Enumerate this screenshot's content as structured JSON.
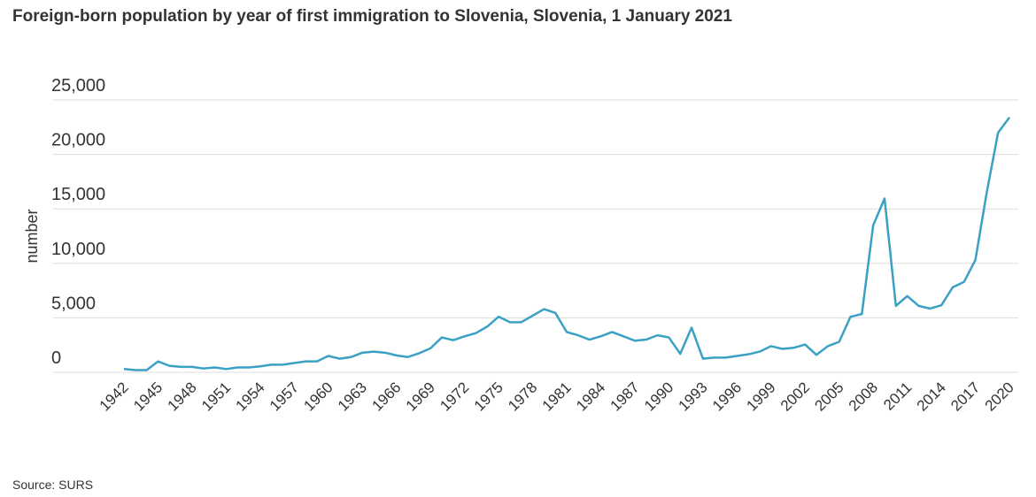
{
  "chart_data": {
    "type": "line",
    "title": "Foreign-born population by year of first immigration to Slovenia, Slovenia, 1 January 2021",
    "y_label": "number",
    "source": "Source: SURS",
    "x": [
      1942,
      1943,
      1944,
      1945,
      1946,
      1947,
      1948,
      1949,
      1950,
      1951,
      1952,
      1953,
      1954,
      1955,
      1956,
      1957,
      1958,
      1959,
      1960,
      1961,
      1962,
      1963,
      1964,
      1965,
      1966,
      1967,
      1968,
      1969,
      1970,
      1971,
      1972,
      1973,
      1974,
      1975,
      1976,
      1977,
      1978,
      1979,
      1980,
      1981,
      1982,
      1983,
      1984,
      1985,
      1986,
      1987,
      1988,
      1989,
      1990,
      1991,
      1992,
      1993,
      1994,
      1995,
      1996,
      1997,
      1998,
      1999,
      2000,
      2001,
      2002,
      2003,
      2004,
      2005,
      2006,
      2007,
      2008,
      2009,
      2010,
      2011,
      2012,
      2013,
      2014,
      2015,
      2016,
      2017,
      2018,
      2019,
      2020
    ],
    "series": [
      {
        "name": "number",
        "color": "#3aa0c4",
        "values": [
          300,
          200,
          200,
          1000,
          600,
          500,
          500,
          350,
          450,
          300,
          450,
          450,
          550,
          700,
          700,
          850,
          1000,
          1000,
          1500,
          1250,
          1400,
          1800,
          1900,
          1800,
          1550,
          1400,
          1750,
          2200,
          3200,
          2950,
          3300,
          3600,
          4200,
          5100,
          4600,
          4600,
          5200,
          5800,
          5450,
          3700,
          3400,
          3000,
          3300,
          3700,
          3300,
          2900,
          3000,
          3400,
          3200,
          1700,
          4100,
          1250,
          1350,
          1350,
          1500,
          1650,
          1900,
          2400,
          2150,
          2250,
          2550,
          1600,
          2400,
          2800,
          5100,
          5350,
          13500,
          15950,
          6100,
          7000,
          6100,
          5850,
          6150,
          7800,
          8300,
          10300,
          16500,
          22000,
          23400
        ]
      }
    ],
    "xlim": [
      1942,
      2020
    ],
    "xticks": [
      1942,
      1945,
      1948,
      1951,
      1954,
      1957,
      1960,
      1963,
      1966,
      1969,
      1972,
      1975,
      1978,
      1981,
      1984,
      1987,
      1990,
      1993,
      1996,
      1999,
      2002,
      2005,
      2008,
      2011,
      2014,
      2017,
      2020
    ],
    "ylim": [
      0,
      25000
    ],
    "yticks": [
      0,
      {
        "value": 5000,
        "label": "5,000"
      },
      {
        "value": 10000,
        "label": "10,000"
      },
      {
        "value": 15000,
        "label": "15,000"
      },
      {
        "value": 20000,
        "label": "20,000"
      },
      {
        "value": 25000,
        "label": "25,000"
      }
    ],
    "grid": true
  }
}
